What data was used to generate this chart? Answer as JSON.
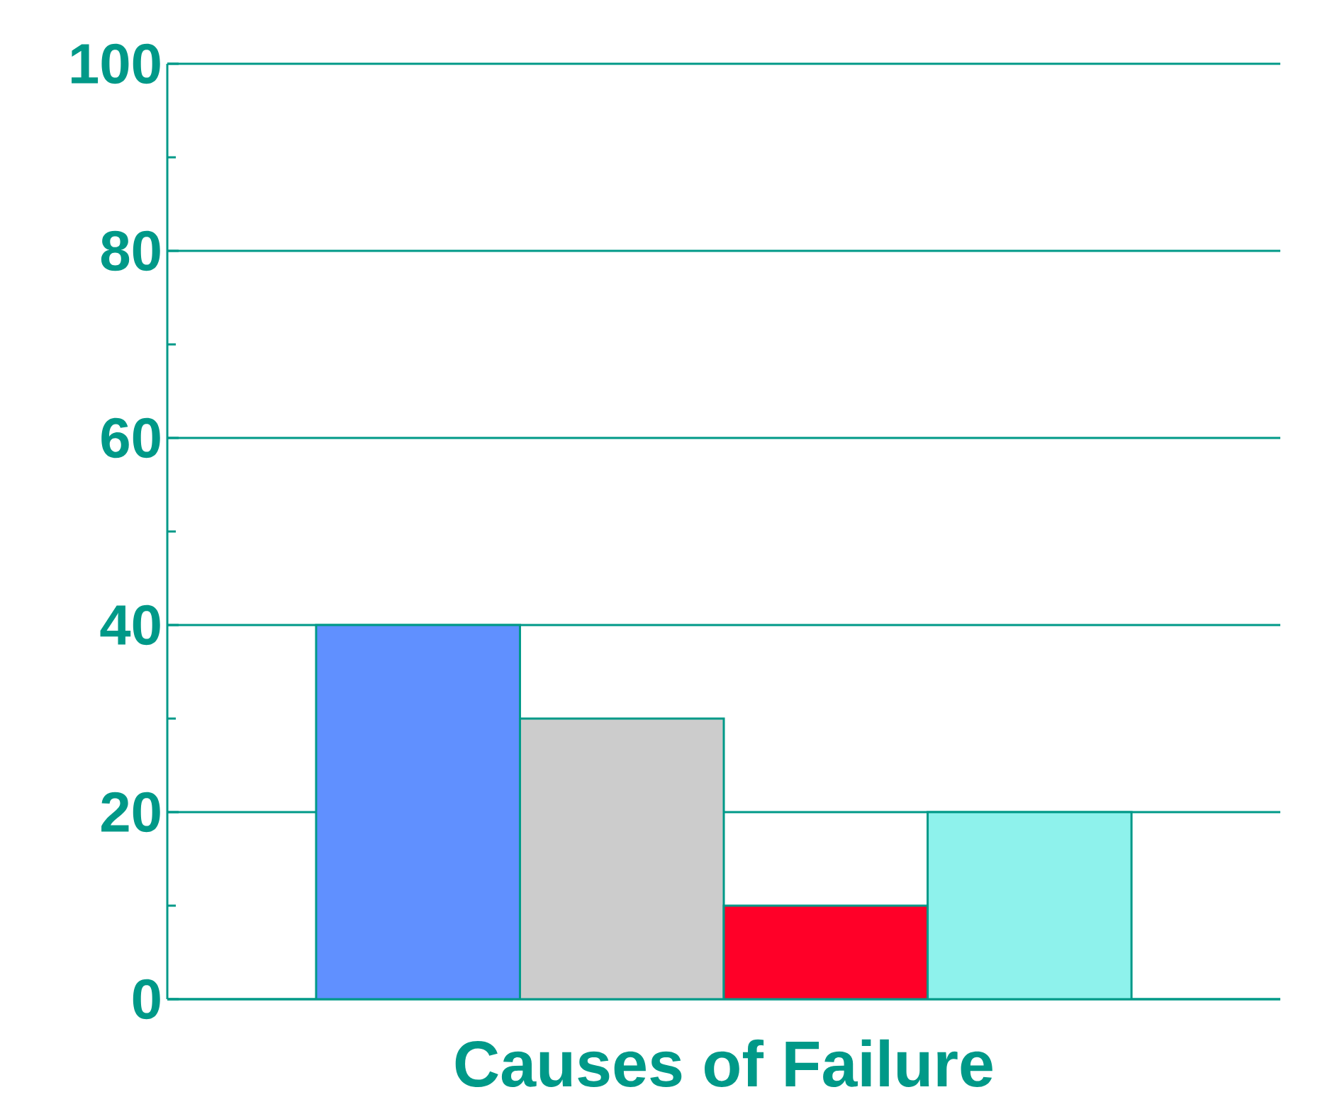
{
  "chart_data": {
    "type": "bar",
    "xlabel": "Causes of Failure",
    "categories": [
      null,
      null,
      null,
      null
    ],
    "values": [
      40,
      30,
      10,
      20
    ],
    "colors": [
      "#6090ff",
      "#cccccc",
      "#ff0028",
      "#8ef2ec"
    ],
    "ylim": [
      0,
      100
    ],
    "yticks": [
      0,
      20,
      40,
      60,
      80,
      100
    ],
    "grid": "y"
  }
}
